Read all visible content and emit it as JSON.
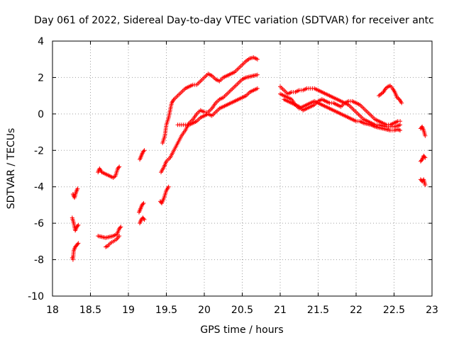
{
  "chart_data": {
    "type": "scatter",
    "title": "Day 061 of 2022, Sidereal Day-to-day VTEC variation (SDTVAR) for receiver antc",
    "xlabel": "GPS time / hours",
    "ylabel": "SDTVAR / TECUs",
    "xlim": [
      18,
      23
    ],
    "ylim": [
      -10,
      4
    ],
    "xticks": [
      "18",
      "18.5",
      "19",
      "19.5",
      "20",
      "20.5",
      "21",
      "21.5",
      "22",
      "22.5",
      "23"
    ],
    "yticks": [
      "4",
      "2",
      "0",
      "-2",
      "-4",
      "-6",
      "-8",
      "-10"
    ],
    "grid": true,
    "marker": "+",
    "color": "#ff0000",
    "series": [
      {
        "name": "trace-1",
        "points": [
          [
            18.27,
            -4.4
          ],
          [
            18.29,
            -4.6
          ],
          [
            18.31,
            -4.3
          ],
          [
            18.33,
            -4.1
          ]
        ]
      },
      {
        "name": "trace-2",
        "points": [
          [
            18.26,
            -5.7
          ],
          [
            18.28,
            -6.0
          ],
          [
            18.3,
            -6.4
          ],
          [
            18.32,
            -6.2
          ],
          [
            18.34,
            -6.1
          ]
        ]
      },
      {
        "name": "trace-3",
        "points": [
          [
            18.26,
            -7.9
          ],
          [
            18.27,
            -8.0
          ],
          [
            18.28,
            -7.5
          ],
          [
            18.3,
            -7.3
          ],
          [
            18.32,
            -7.2
          ],
          [
            18.34,
            -7.1
          ]
        ]
      },
      {
        "name": "trace-4",
        "points": [
          [
            18.6,
            -3.2
          ],
          [
            18.62,
            -3.0
          ],
          [
            18.65,
            -3.2
          ],
          [
            18.7,
            -3.3
          ],
          [
            18.75,
            -3.4
          ],
          [
            18.8,
            -3.5
          ],
          [
            18.83,
            -3.4
          ],
          [
            18.86,
            -3.0
          ],
          [
            18.88,
            -2.9
          ]
        ]
      },
      {
        "name": "trace-5",
        "points": [
          [
            18.6,
            -6.7
          ],
          [
            18.65,
            -6.75
          ],
          [
            18.7,
            -6.8
          ],
          [
            18.75,
            -6.75
          ],
          [
            18.8,
            -6.7
          ],
          [
            18.85,
            -6.6
          ],
          [
            18.88,
            -6.3
          ],
          [
            18.9,
            -6.2
          ]
        ]
      },
      {
        "name": "trace-6",
        "points": [
          [
            18.7,
            -7.3
          ],
          [
            18.73,
            -7.25
          ],
          [
            18.76,
            -7.1
          ],
          [
            18.8,
            -7.0
          ],
          [
            18.84,
            -6.9
          ],
          [
            18.88,
            -6.7
          ]
        ]
      },
      {
        "name": "trace-7",
        "points": [
          [
            19.15,
            -2.5
          ],
          [
            19.17,
            -2.3
          ],
          [
            19.19,
            -2.1
          ],
          [
            19.21,
            -2.0
          ]
        ]
      },
      {
        "name": "trace-8",
        "points": [
          [
            19.14,
            -5.4
          ],
          [
            19.16,
            -5.2
          ],
          [
            19.18,
            -5.0
          ],
          [
            19.2,
            -4.9
          ]
        ]
      },
      {
        "name": "trace-9",
        "points": [
          [
            19.15,
            -6.0
          ],
          [
            19.17,
            -5.8
          ],
          [
            19.19,
            -5.7
          ],
          [
            19.21,
            -5.8
          ]
        ]
      },
      {
        "name": "trace-10",
        "points": [
          [
            19.42,
            -4.8
          ],
          [
            19.44,
            -4.9
          ],
          [
            19.47,
            -4.6
          ],
          [
            19.5,
            -4.2
          ],
          [
            19.53,
            -4.0
          ]
        ]
      },
      {
        "name": "trace-11",
        "points": [
          [
            19.43,
            -3.2
          ],
          [
            19.47,
            -2.9
          ],
          [
            19.5,
            -2.6
          ],
          [
            19.55,
            -2.4
          ],
          [
            19.6,
            -2.0
          ],
          [
            19.65,
            -1.6
          ],
          [
            19.7,
            -1.2
          ],
          [
            19.75,
            -0.9
          ],
          [
            19.8,
            -0.5
          ],
          [
            19.85,
            -0.3
          ],
          [
            19.9,
            0.0
          ],
          [
            19.95,
            0.2
          ],
          [
            20.0,
            0.1
          ],
          [
            20.05,
            0.1
          ],
          [
            20.1,
            0.3
          ],
          [
            20.15,
            0.6
          ],
          [
            20.2,
            0.8
          ],
          [
            20.25,
            0.9
          ],
          [
            20.3,
            1.1
          ],
          [
            20.35,
            1.3
          ],
          [
            20.4,
            1.5
          ],
          [
            20.45,
            1.7
          ],
          [
            20.5,
            1.9
          ],
          [
            20.55,
            2.0
          ],
          [
            20.6,
            2.05
          ],
          [
            20.65,
            2.1
          ],
          [
            20.7,
            2.15
          ]
        ]
      },
      {
        "name": "trace-12",
        "points": [
          [
            19.45,
            -1.6
          ],
          [
            19.48,
            -1.2
          ],
          [
            19.5,
            -0.6
          ],
          [
            19.53,
            -0.2
          ],
          [
            19.55,
            0.2
          ],
          [
            19.57,
            0.6
          ],
          [
            19.6,
            0.8
          ],
          [
            19.65,
            1.0
          ],
          [
            19.7,
            1.2
          ],
          [
            19.75,
            1.4
          ],
          [
            19.8,
            1.5
          ],
          [
            19.85,
            1.6
          ],
          [
            19.9,
            1.6
          ],
          [
            19.95,
            1.8
          ],
          [
            20.0,
            2.0
          ],
          [
            20.05,
            2.2
          ],
          [
            20.1,
            2.1
          ],
          [
            20.15,
            1.9
          ],
          [
            20.2,
            1.8
          ],
          [
            20.25,
            2.0
          ],
          [
            20.3,
            2.1
          ],
          [
            20.35,
            2.2
          ],
          [
            20.4,
            2.3
          ],
          [
            20.45,
            2.5
          ],
          [
            20.5,
            2.7
          ],
          [
            20.55,
            2.9
          ],
          [
            20.6,
            3.05
          ],
          [
            20.65,
            3.1
          ],
          [
            20.7,
            3.0
          ]
        ]
      },
      {
        "name": "trace-13",
        "points": [
          [
            19.65,
            -0.6
          ],
          [
            19.7,
            -0.6
          ],
          [
            19.75,
            -0.6
          ],
          [
            19.8,
            -0.6
          ],
          [
            19.85,
            -0.5
          ],
          [
            19.9,
            -0.4
          ],
          [
            19.95,
            -0.2
          ],
          [
            20.0,
            -0.1
          ],
          [
            20.05,
            0.0
          ],
          [
            20.1,
            -0.1
          ],
          [
            20.15,
            0.1
          ],
          [
            20.2,
            0.3
          ],
          [
            20.25,
            0.4
          ],
          [
            20.3,
            0.5
          ],
          [
            20.35,
            0.6
          ],
          [
            20.4,
            0.7
          ],
          [
            20.45,
            0.8
          ],
          [
            20.5,
            0.9
          ],
          [
            20.55,
            1.0
          ],
          [
            20.6,
            1.2
          ],
          [
            20.65,
            1.3
          ],
          [
            20.7,
            1.4
          ]
        ]
      },
      {
        "name": "trace-14",
        "points": [
          [
            21.0,
            1.5
          ],
          [
            21.05,
            1.3
          ],
          [
            21.1,
            1.1
          ],
          [
            21.15,
            1.2
          ],
          [
            21.2,
            1.2
          ],
          [
            21.25,
            1.3
          ],
          [
            21.3,
            1.3
          ],
          [
            21.35,
            1.4
          ],
          [
            21.4,
            1.4
          ],
          [
            21.45,
            1.4
          ],
          [
            21.5,
            1.3
          ],
          [
            21.55,
            1.2
          ],
          [
            21.6,
            1.1
          ],
          [
            21.65,
            1.0
          ],
          [
            21.7,
            0.9
          ],
          [
            21.75,
            0.8
          ],
          [
            21.8,
            0.7
          ],
          [
            21.85,
            0.6
          ],
          [
            21.9,
            0.5
          ],
          [
            21.95,
            0.3
          ],
          [
            22.0,
            0.1
          ],
          [
            22.05,
            -0.1
          ],
          [
            22.1,
            -0.3
          ],
          [
            22.15,
            -0.4
          ],
          [
            22.2,
            -0.5
          ],
          [
            22.25,
            -0.6
          ],
          [
            22.3,
            -0.6
          ],
          [
            22.35,
            -0.65
          ],
          [
            22.4,
            -0.7
          ],
          [
            22.45,
            -0.7
          ],
          [
            22.5,
            -0.7
          ],
          [
            22.55,
            -0.65
          ],
          [
            22.58,
            -0.6
          ]
        ]
      },
      {
        "name": "trace-15",
        "points": [
          [
            21.0,
            1.1
          ],
          [
            21.05,
            1.0
          ],
          [
            21.1,
            0.9
          ],
          [
            21.15,
            0.8
          ],
          [
            21.2,
            0.5
          ],
          [
            21.25,
            0.4
          ],
          [
            21.3,
            0.2
          ],
          [
            21.35,
            0.3
          ],
          [
            21.4,
            0.4
          ],
          [
            21.45,
            0.5
          ],
          [
            21.5,
            0.7
          ],
          [
            21.55,
            0.8
          ],
          [
            21.6,
            0.7
          ],
          [
            21.65,
            0.6
          ],
          [
            21.7,
            0.6
          ],
          [
            21.75,
            0.5
          ],
          [
            21.8,
            0.4
          ],
          [
            21.85,
            0.6
          ],
          [
            21.9,
            0.7
          ],
          [
            21.95,
            0.7
          ],
          [
            22.0,
            0.6
          ],
          [
            22.05,
            0.5
          ],
          [
            22.1,
            0.3
          ],
          [
            22.15,
            0.1
          ],
          [
            22.2,
            -0.1
          ],
          [
            22.25,
            -0.3
          ],
          [
            22.3,
            -0.4
          ],
          [
            22.35,
            -0.5
          ],
          [
            22.4,
            -0.6
          ],
          [
            22.45,
            -0.6
          ],
          [
            22.5,
            -0.5
          ],
          [
            22.55,
            -0.4
          ],
          [
            22.58,
            -0.4
          ]
        ]
      },
      {
        "name": "trace-16",
        "points": [
          [
            21.05,
            0.8
          ],
          [
            21.1,
            0.7
          ],
          [
            21.15,
            0.6
          ],
          [
            21.2,
            0.5
          ],
          [
            21.25,
            0.3
          ],
          [
            21.3,
            0.4
          ],
          [
            21.35,
            0.5
          ],
          [
            21.4,
            0.6
          ],
          [
            21.45,
            0.7
          ],
          [
            21.5,
            0.6
          ],
          [
            21.55,
            0.5
          ],
          [
            21.6,
            0.4
          ],
          [
            21.65,
            0.3
          ],
          [
            21.7,
            0.2
          ],
          [
            21.75,
            0.1
          ],
          [
            21.8,
            0.0
          ],
          [
            21.85,
            -0.1
          ],
          [
            21.9,
            -0.2
          ],
          [
            21.95,
            -0.3
          ],
          [
            22.0,
            -0.4
          ],
          [
            22.05,
            -0.4
          ],
          [
            22.1,
            -0.5
          ],
          [
            22.15,
            -0.55
          ],
          [
            22.2,
            -0.6
          ],
          [
            22.25,
            -0.7
          ],
          [
            22.3,
            -0.75
          ],
          [
            22.35,
            -0.8
          ],
          [
            22.4,
            -0.85
          ],
          [
            22.45,
            -0.9
          ],
          [
            22.5,
            -0.9
          ],
          [
            22.55,
            -0.85
          ],
          [
            22.58,
            -0.9
          ]
        ]
      },
      {
        "name": "trace-17",
        "points": [
          [
            22.3,
            1.0
          ],
          [
            22.33,
            1.1
          ],
          [
            22.36,
            1.2
          ],
          [
            22.39,
            1.4
          ],
          [
            22.42,
            1.5
          ],
          [
            22.45,
            1.55
          ],
          [
            22.48,
            1.4
          ],
          [
            22.51,
            1.2
          ],
          [
            22.54,
            0.9
          ],
          [
            22.57,
            0.8
          ],
          [
            22.6,
            0.6
          ]
        ]
      },
      {
        "name": "trace-18",
        "points": [
          [
            22.85,
            -0.8
          ],
          [
            22.87,
            -0.7
          ],
          [
            22.89,
            -0.9
          ],
          [
            22.91,
            -1.2
          ]
        ]
      },
      {
        "name": "trace-19",
        "points": [
          [
            22.85,
            -2.6
          ],
          [
            22.87,
            -2.5
          ],
          [
            22.89,
            -2.3
          ],
          [
            22.91,
            -2.4
          ]
        ]
      },
      {
        "name": "trace-20",
        "points": [
          [
            22.85,
            -3.6
          ],
          [
            22.87,
            -3.7
          ],
          [
            22.89,
            -3.6
          ],
          [
            22.91,
            -3.9
          ]
        ]
      }
    ]
  }
}
